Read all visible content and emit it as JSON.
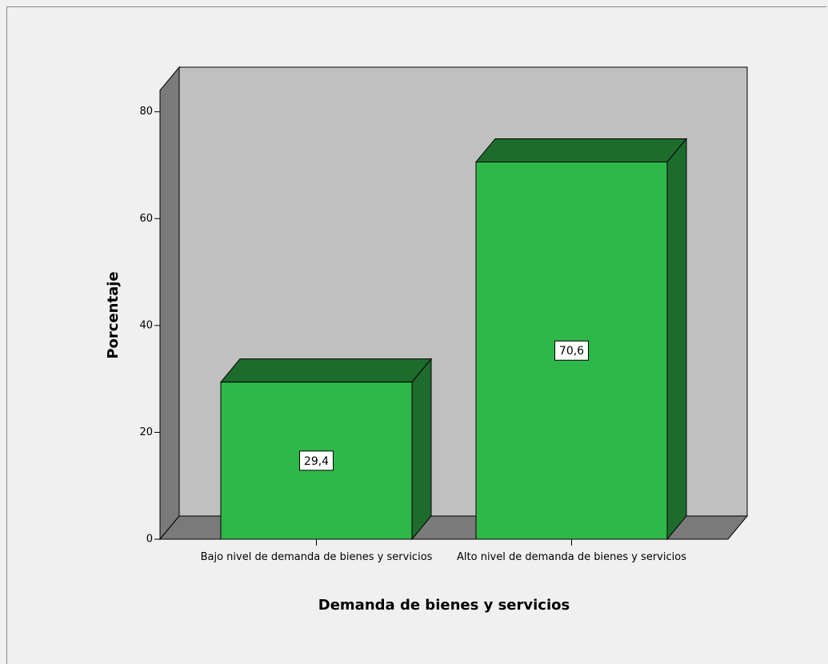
{
  "chart_data": {
    "type": "bar3d",
    "xlabel": "Demanda de bienes y servicios",
    "ylabel": "Porcentaje",
    "categories": [
      "Bajo nivel de demanda de bienes y servicios",
      "Alto nivel de demanda de bienes y servicios"
    ],
    "values": [
      29.4,
      70.6
    ],
    "value_labels": [
      "29,4",
      "70,6"
    ],
    "color": "#2fb84a",
    "ylim": [
      0,
      84
    ],
    "yticks": [
      0,
      20,
      40,
      60,
      80
    ]
  }
}
